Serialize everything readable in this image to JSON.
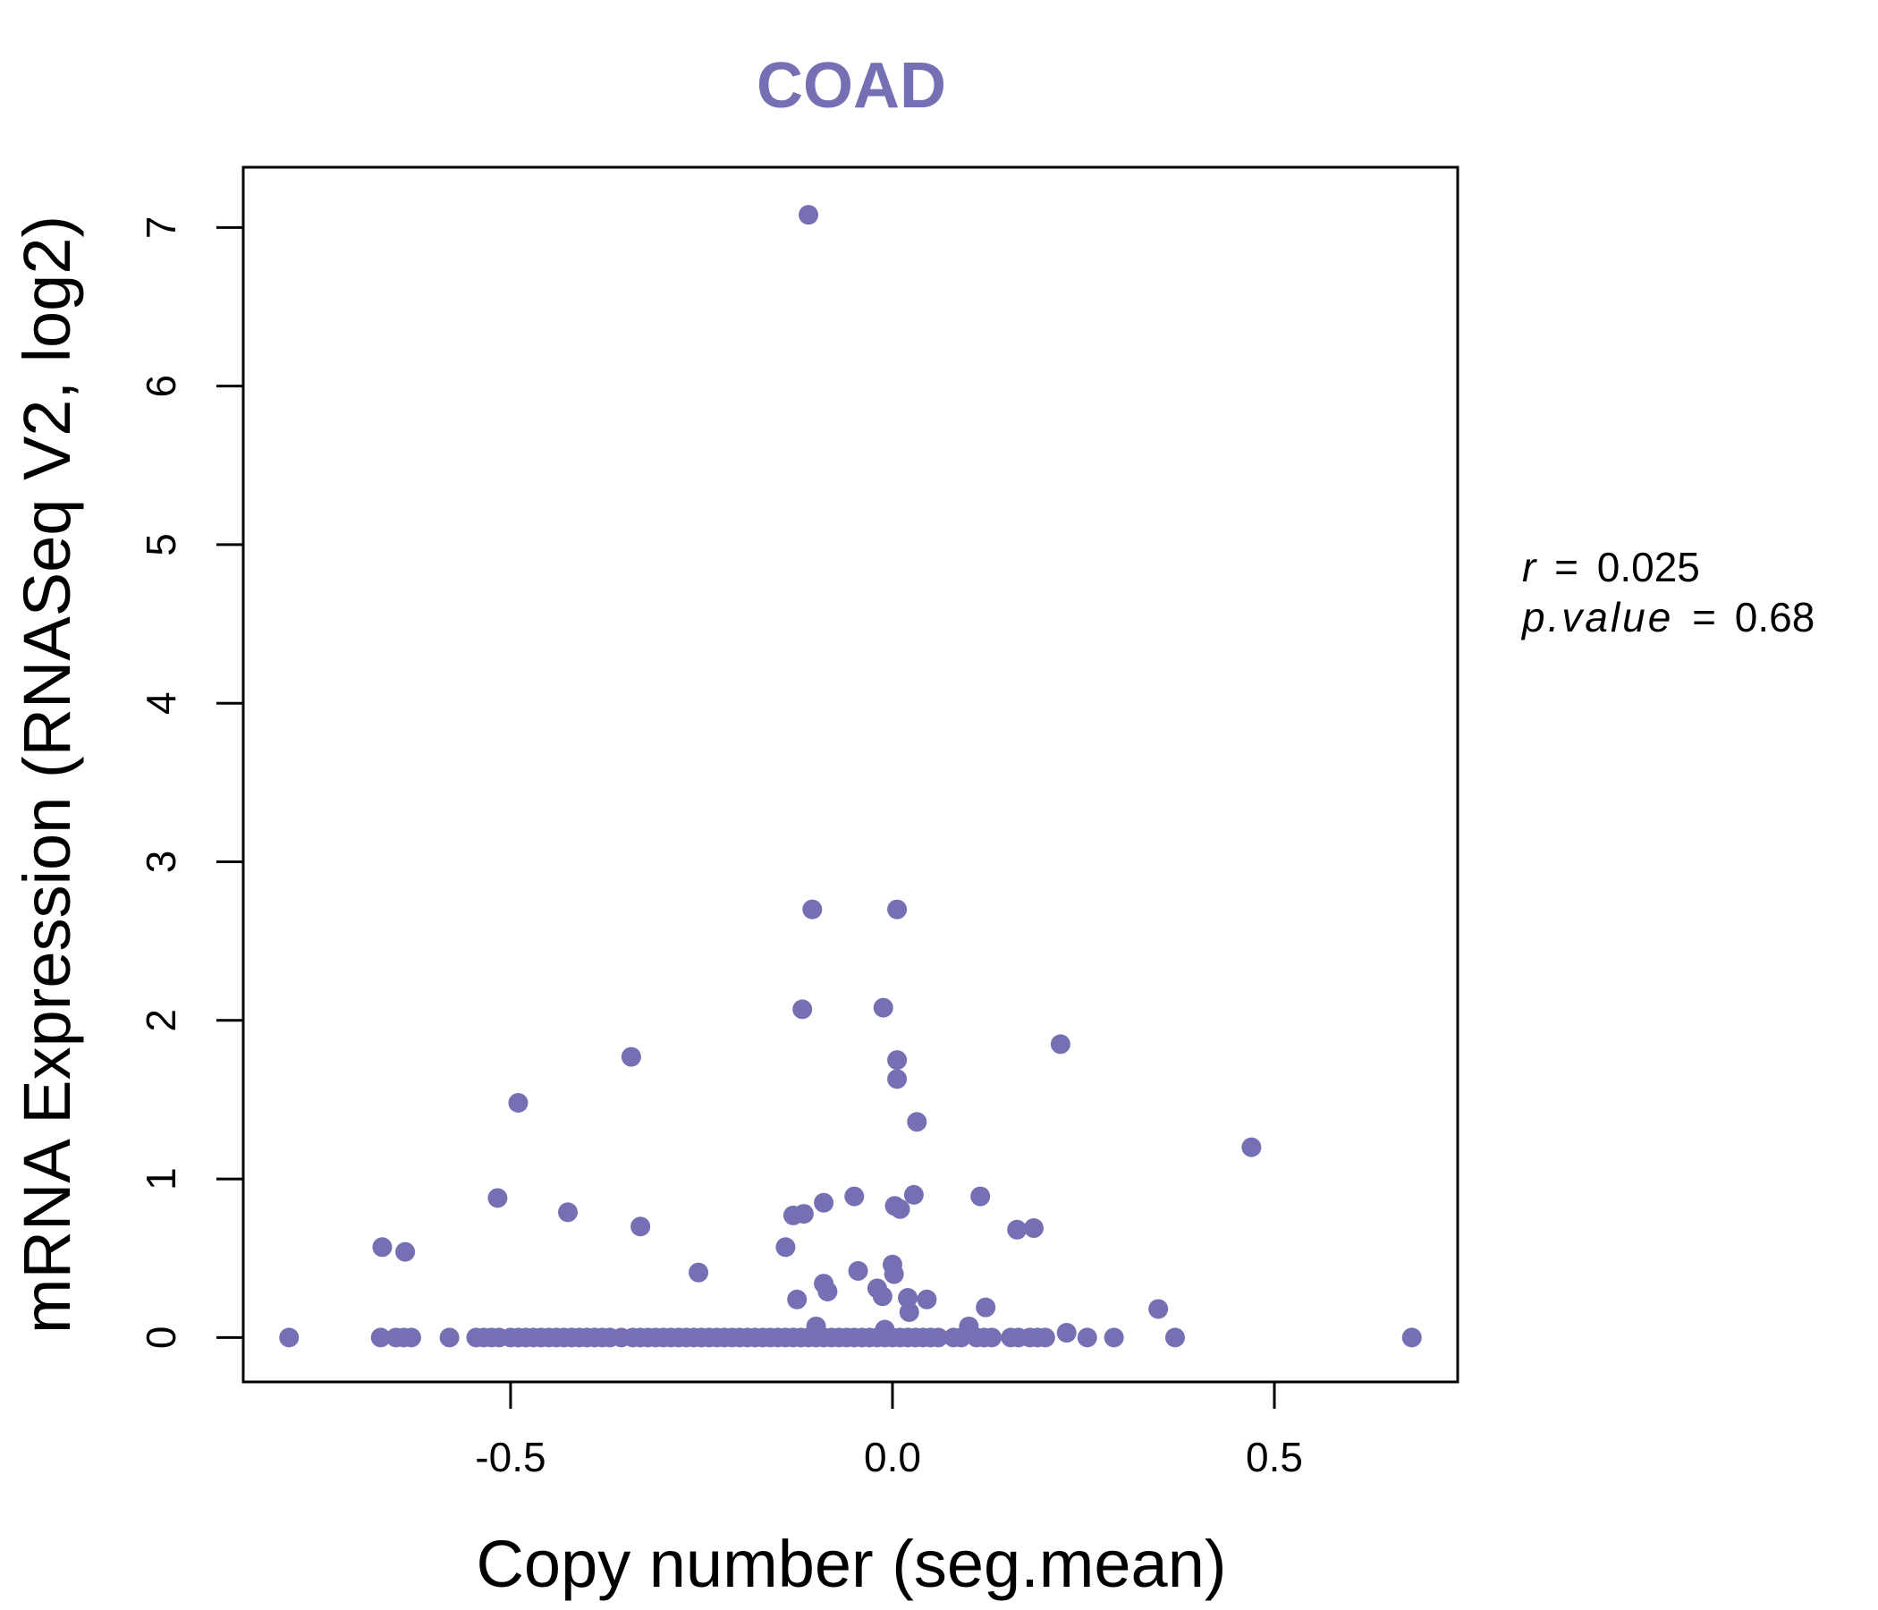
{
  "chart_data": {
    "type": "scatter",
    "title": "COAD",
    "xlabel": "Copy number (seg.mean)",
    "ylabel": "mRNA Expression (RNASeq V2, log2)",
    "xlim": [
      -0.85,
      0.74
    ],
    "ylim": [
      -0.28,
      7.38
    ],
    "x_ticks": [
      -0.5,
      0.0,
      0.5
    ],
    "x_tick_labels": [
      "-0.5",
      "0.0",
      "0.5"
    ],
    "y_ticks": [
      0,
      1,
      2,
      3,
      4,
      5,
      6,
      7
    ],
    "y_tick_labels": [
      "0",
      "1",
      "2",
      "3",
      "4",
      "5",
      "6",
      "7"
    ],
    "grid": false,
    "legend": "none",
    "color": "#7570b3",
    "stats": {
      "r_label": "r",
      "r_value": "0.025",
      "p_label": "p.value",
      "p_value": "0.68",
      "equals": "="
    },
    "points": [
      {
        "x": -0.79,
        "y": 0.0
      },
      {
        "x": -0.67,
        "y": 0.0
      },
      {
        "x": -0.65,
        "y": 0.0
      },
      {
        "x": -0.64,
        "y": 0.0
      },
      {
        "x": -0.63,
        "y": 0.0
      },
      {
        "x": -0.58,
        "y": 0.0
      },
      {
        "x": -0.545,
        "y": 0.0
      },
      {
        "x": -0.535,
        "y": 0.0
      },
      {
        "x": -0.525,
        "y": 0.0
      },
      {
        "x": -0.515,
        "y": 0.0
      },
      {
        "x": -0.5,
        "y": 0.0
      },
      {
        "x": -0.49,
        "y": 0.0
      },
      {
        "x": -0.48,
        "y": 0.0
      },
      {
        "x": -0.47,
        "y": 0.0
      },
      {
        "x": -0.46,
        "y": 0.0
      },
      {
        "x": -0.45,
        "y": 0.0
      },
      {
        "x": -0.44,
        "y": 0.0
      },
      {
        "x": -0.43,
        "y": 0.0
      },
      {
        "x": -0.42,
        "y": 0.0
      },
      {
        "x": -0.41,
        "y": 0.0
      },
      {
        "x": -0.4,
        "y": 0.0
      },
      {
        "x": -0.39,
        "y": 0.0
      },
      {
        "x": -0.38,
        "y": 0.0
      },
      {
        "x": -0.37,
        "y": 0.0
      },
      {
        "x": -0.355,
        "y": 0.0
      },
      {
        "x": -0.34,
        "y": 0.0
      },
      {
        "x": -0.33,
        "y": 0.0
      },
      {
        "x": -0.32,
        "y": 0.0
      },
      {
        "x": -0.31,
        "y": 0.0
      },
      {
        "x": -0.3,
        "y": 0.0
      },
      {
        "x": -0.29,
        "y": 0.0
      },
      {
        "x": -0.28,
        "y": 0.0
      },
      {
        "x": -0.27,
        "y": 0.0
      },
      {
        "x": -0.26,
        "y": 0.0
      },
      {
        "x": -0.25,
        "y": 0.0
      },
      {
        "x": -0.24,
        "y": 0.0
      },
      {
        "x": -0.23,
        "y": 0.0
      },
      {
        "x": -0.22,
        "y": 0.0
      },
      {
        "x": -0.21,
        "y": 0.0
      },
      {
        "x": -0.2,
        "y": 0.0
      },
      {
        "x": -0.19,
        "y": 0.0
      },
      {
        "x": -0.18,
        "y": 0.0
      },
      {
        "x": -0.17,
        "y": 0.0
      },
      {
        "x": -0.16,
        "y": 0.0
      },
      {
        "x": -0.15,
        "y": 0.0
      },
      {
        "x": -0.14,
        "y": 0.0
      },
      {
        "x": -0.13,
        "y": 0.0
      },
      {
        "x": -0.12,
        "y": 0.0
      },
      {
        "x": -0.11,
        "y": 0.0
      },
      {
        "x": -0.1,
        "y": 0.0
      },
      {
        "x": -0.09,
        "y": 0.0
      },
      {
        "x": -0.08,
        "y": 0.0
      },
      {
        "x": -0.07,
        "y": 0.0
      },
      {
        "x": -0.06,
        "y": 0.0
      },
      {
        "x": -0.05,
        "y": 0.0
      },
      {
        "x": -0.04,
        "y": 0.0
      },
      {
        "x": -0.03,
        "y": 0.0
      },
      {
        "x": -0.02,
        "y": 0.0
      },
      {
        "x": -0.01,
        "y": 0.0
      },
      {
        "x": 0.0,
        "y": 0.0
      },
      {
        "x": 0.01,
        "y": 0.0
      },
      {
        "x": 0.02,
        "y": 0.0
      },
      {
        "x": 0.03,
        "y": 0.0
      },
      {
        "x": 0.04,
        "y": 0.0
      },
      {
        "x": 0.05,
        "y": 0.0
      },
      {
        "x": 0.06,
        "y": 0.0
      },
      {
        "x": 0.08,
        "y": 0.0
      },
      {
        "x": 0.09,
        "y": 0.0
      },
      {
        "x": 0.11,
        "y": 0.0
      },
      {
        "x": 0.12,
        "y": 0.0
      },
      {
        "x": 0.13,
        "y": 0.0
      },
      {
        "x": 0.155,
        "y": 0.0
      },
      {
        "x": 0.165,
        "y": 0.0
      },
      {
        "x": 0.18,
        "y": 0.0
      },
      {
        "x": 0.19,
        "y": 0.0
      },
      {
        "x": 0.2,
        "y": 0.0
      },
      {
        "x": 0.255,
        "y": 0.0
      },
      {
        "x": 0.29,
        "y": 0.0
      },
      {
        "x": 0.37,
        "y": 0.0
      },
      {
        "x": 0.68,
        "y": 0.0
      },
      {
        "x": -0.11,
        "y": 7.08
      },
      {
        "x": -0.105,
        "y": 2.7
      },
      {
        "x": 0.006,
        "y": 2.7
      },
      {
        "x": -0.118,
        "y": 2.07
      },
      {
        "x": -0.012,
        "y": 2.08
      },
      {
        "x": 0.22,
        "y": 1.85
      },
      {
        "x": -0.342,
        "y": 1.77
      },
      {
        "x": 0.006,
        "y": 1.75
      },
      {
        "x": 0.006,
        "y": 1.63
      },
      {
        "x": -0.49,
        "y": 1.48
      },
      {
        "x": 0.032,
        "y": 1.36
      },
      {
        "x": 0.47,
        "y": 1.2
      },
      {
        "x": 0.028,
        "y": 0.9
      },
      {
        "x": -0.05,
        "y": 0.89
      },
      {
        "x": 0.115,
        "y": 0.89
      },
      {
        "x": -0.517,
        "y": 0.88
      },
      {
        "x": -0.09,
        "y": 0.85
      },
      {
        "x": 0.003,
        "y": 0.83
      },
      {
        "x": 0.01,
        "y": 0.81
      },
      {
        "x": -0.425,
        "y": 0.79
      },
      {
        "x": -0.116,
        "y": 0.78
      },
      {
        "x": -0.13,
        "y": 0.77
      },
      {
        "x": -0.33,
        "y": 0.7
      },
      {
        "x": 0.185,
        "y": 0.69
      },
      {
        "x": 0.163,
        "y": 0.68
      },
      {
        "x": -0.668,
        "y": 0.57
      },
      {
        "x": -0.14,
        "y": 0.57
      },
      {
        "x": -0.638,
        "y": 0.54
      },
      {
        "x": 0.0,
        "y": 0.46
      },
      {
        "x": -0.045,
        "y": 0.42
      },
      {
        "x": 0.002,
        "y": 0.4
      },
      {
        "x": -0.254,
        "y": 0.41
      },
      {
        "x": -0.09,
        "y": 0.34
      },
      {
        "x": -0.02,
        "y": 0.31
      },
      {
        "x": -0.085,
        "y": 0.29
      },
      {
        "x": -0.013,
        "y": 0.26
      },
      {
        "x": 0.02,
        "y": 0.25
      },
      {
        "x": 0.045,
        "y": 0.24
      },
      {
        "x": -0.125,
        "y": 0.24
      },
      {
        "x": 0.122,
        "y": 0.19
      },
      {
        "x": 0.348,
        "y": 0.18
      },
      {
        "x": 0.022,
        "y": 0.16
      },
      {
        "x": -0.1,
        "y": 0.07
      },
      {
        "x": 0.1,
        "y": 0.07
      },
      {
        "x": -0.01,
        "y": 0.05
      },
      {
        "x": 0.228,
        "y": 0.03
      }
    ]
  }
}
